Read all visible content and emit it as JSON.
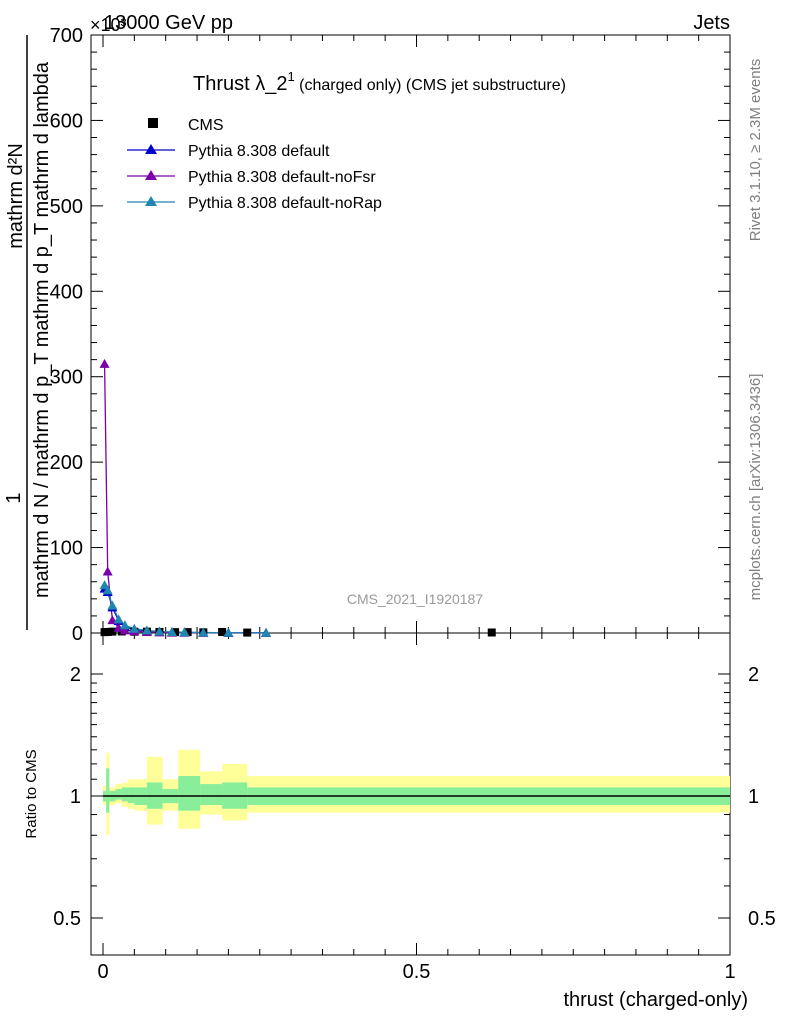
{
  "header": {
    "energy": "13000 GeV pp",
    "process": "Jets",
    "exponent": "×10³"
  },
  "side_labels": {
    "rivet": "Rivet 3.1.10, ≥ 2.3M events",
    "mcplots": "mcplots.cern.ch [arXiv:1306.3436]"
  },
  "watermark": "CMS_2021_I1920187",
  "chart_data": [
    {
      "type": "line",
      "title_main": "Thrust λ_2",
      "title_sup": "1",
      "title_rest": " (charged only) (CMS jet substructure)",
      "ylabel": "1 / mathrm d N / mathrm d p_T mathrm d p_T mathrm d lambda mathrm d²N",
      "ylabel_num": "mathrm d²N",
      "ylabel_den": "mathrm d N / mathrm d p_T mathrm d p_T mathrm d lambda",
      "ylabel_one": "1",
      "xlim": [
        -0.02,
        1.0
      ],
      "ylim": [
        0,
        700
      ],
      "y_ticks": [
        0,
        100,
        200,
        300,
        400,
        500,
        600,
        700
      ],
      "y_tick_labels": [
        "0",
        "100",
        "200",
        "300",
        "400",
        "500",
        "600",
        "700"
      ],
      "legend": [
        "CMS",
        "Pythia 8.308 default",
        "Pythia 8.308 default-noFsr",
        "Pythia 8.308 default-noRap"
      ],
      "legend_position": "top-left",
      "series": [
        {
          "name": "CMS",
          "color": "#000000",
          "marker": "square",
          "x": [
            0.0025,
            0.0075,
            0.015,
            0.03,
            0.05,
            0.07,
            0.09,
            0.115,
            0.135,
            0.16,
            0.19,
            0.23,
            0.62
          ],
          "y": [
            1.0,
            1.2,
            1.6,
            1.8,
            1.5,
            1.6,
            1.2,
            1.0,
            1.0,
            0.8,
            1.2,
            0.5,
            0.6
          ]
        },
        {
          "name": "Pythia 8.308 default",
          "color": "#0000cc",
          "marker": "triangle",
          "x": [
            0.0025,
            0.0075,
            0.015,
            0.025,
            0.035,
            0.05,
            0.07,
            0.09,
            0.11,
            0.13,
            0.16,
            0.2,
            0.26
          ],
          "y": [
            52,
            48,
            30,
            14,
            7,
            4,
            2.5,
            1.5,
            1.0,
            0.7,
            0.4,
            0.2,
            0.1
          ]
        },
        {
          "name": "Pythia 8.308 default-noFsr",
          "color": "#7a00aa",
          "marker": "triangle",
          "x": [
            0.0025,
            0.0075,
            0.015,
            0.025,
            0.035,
            0.05,
            0.07,
            0.09,
            0.11,
            0.13,
            0.16,
            0.2,
            0.26
          ],
          "y": [
            315,
            72,
            15,
            6,
            3,
            2,
            1.2,
            0.8,
            0.5,
            0.3,
            0.2,
            0.1,
            0.05
          ]
        },
        {
          "name": "Pythia 8.308 default-noRap",
          "color": "#1f86b0",
          "marker": "triangle",
          "x": [
            0.0025,
            0.0075,
            0.015,
            0.025,
            0.035,
            0.05,
            0.07,
            0.09,
            0.11,
            0.13,
            0.16,
            0.2,
            0.26
          ],
          "y": [
            56,
            50,
            32,
            16,
            9,
            5,
            3,
            1.8,
            1.2,
            0.8,
            0.5,
            0.25,
            0.12
          ]
        }
      ]
    },
    {
      "type": "area",
      "ylabel": "Ratio to CMS",
      "xlabel": "thrust (charged-only)",
      "xlim": [
        -0.02,
        1.0
      ],
      "ylim": [
        0.35,
        2.35
      ],
      "y_ticks": [
        0.5,
        1,
        2
      ],
      "y_tick_labels": [
        "0.5",
        "1",
        "2"
      ],
      "x_ticks": [
        0,
        0.5,
        1
      ],
      "x_tick_labels": [
        "0",
        "0.5",
        "1"
      ],
      "reference": 1.0,
      "bands": [
        {
          "x0": 0.0,
          "x1": 0.005,
          "yellow": [
            0.95,
            1.06
          ],
          "green": [
            0.97,
            1.03
          ]
        },
        {
          "x0": 0.005,
          "x1": 0.01,
          "yellow": [
            0.8,
            1.28
          ],
          "green": [
            0.91,
            1.17
          ]
        },
        {
          "x0": 0.01,
          "x1": 0.02,
          "yellow": [
            0.95,
            1.05
          ],
          "green": [
            0.97,
            1.03
          ]
        },
        {
          "x0": 0.02,
          "x1": 0.03,
          "yellow": [
            0.96,
            1.07
          ],
          "green": [
            0.98,
            1.04
          ]
        },
        {
          "x0": 0.03,
          "x1": 0.04,
          "yellow": [
            0.94,
            1.08
          ],
          "green": [
            0.97,
            1.05
          ]
        },
        {
          "x0": 0.04,
          "x1": 0.05,
          "yellow": [
            0.93,
            1.1
          ],
          "green": [
            0.96,
            1.05
          ]
        },
        {
          "x0": 0.05,
          "x1": 0.07,
          "yellow": [
            0.92,
            1.1
          ],
          "green": [
            0.95,
            1.05
          ]
        },
        {
          "x0": 0.07,
          "x1": 0.095,
          "yellow": [
            0.85,
            1.25
          ],
          "green": [
            0.93,
            1.08
          ]
        },
        {
          "x0": 0.095,
          "x1": 0.12,
          "yellow": [
            0.92,
            1.1
          ],
          "green": [
            0.96,
            1.04
          ]
        },
        {
          "x0": 0.12,
          "x1": 0.155,
          "yellow": [
            0.83,
            1.3
          ],
          "green": [
            0.92,
            1.12
          ]
        },
        {
          "x0": 0.155,
          "x1": 0.19,
          "yellow": [
            0.9,
            1.15
          ],
          "green": [
            0.95,
            1.07
          ]
        },
        {
          "x0": 0.19,
          "x1": 0.23,
          "yellow": [
            0.87,
            1.2
          ],
          "green": [
            0.93,
            1.08
          ]
        },
        {
          "x0": 0.23,
          "x1": 1.0,
          "yellow": [
            0.91,
            1.12
          ],
          "green": [
            0.95,
            1.05
          ]
        }
      ]
    }
  ]
}
